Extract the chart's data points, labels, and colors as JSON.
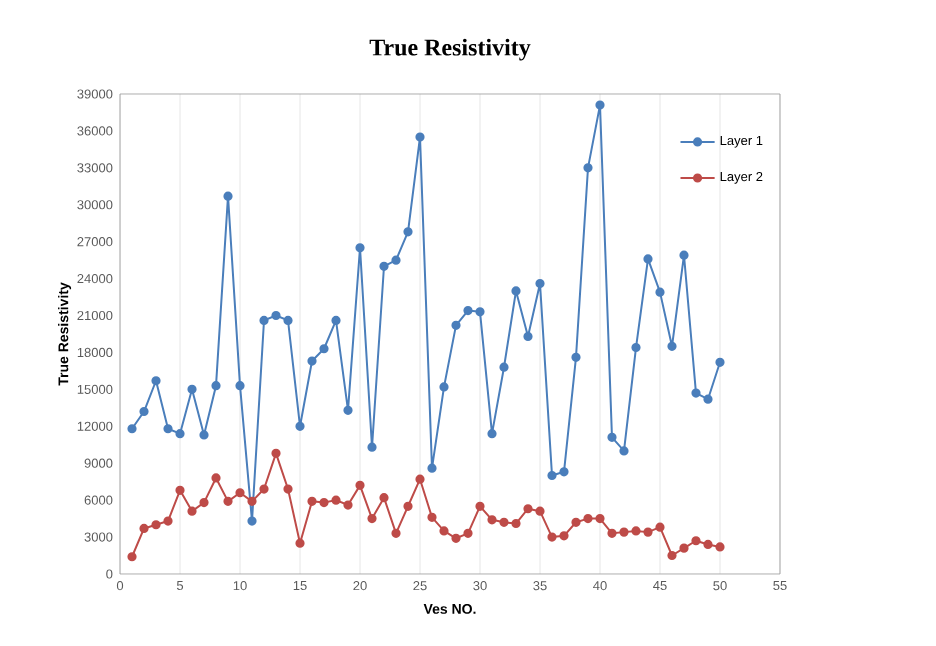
{
  "chart_data": {
    "type": "line",
    "title": "True Resistivity",
    "xlabel": "Ves NO.",
    "ylabel": "True Resistivity",
    "x": [
      1,
      2,
      3,
      4,
      5,
      6,
      7,
      8,
      9,
      10,
      11,
      12,
      13,
      14,
      15,
      16,
      17,
      18,
      19,
      20,
      21,
      22,
      23,
      24,
      25,
      26,
      27,
      28,
      29,
      30,
      31,
      32,
      33,
      34,
      35,
      36,
      37,
      38,
      39,
      40,
      41,
      42,
      43,
      44,
      45,
      46,
      47,
      48,
      49,
      50
    ],
    "series": [
      {
        "name": "Layer 1",
        "color": "#4a7ebb",
        "values": [
          11800,
          13200,
          15700,
          11800,
          11400,
          15000,
          11300,
          15300,
          30700,
          15300,
          4300,
          20600,
          21000,
          20600,
          12000,
          17300,
          18300,
          20600,
          13300,
          26500,
          10300,
          25000,
          25500,
          27800,
          35500,
          8600,
          15200,
          20200,
          21400,
          21300,
          11400,
          16800,
          23000,
          19300,
          23600,
          8000,
          8300,
          17600,
          33000,
          38100,
          11100,
          10000,
          18400,
          25600,
          22900,
          18500,
          25900,
          14700,
          14200,
          17200
        ]
      },
      {
        "name": "Layer 2",
        "color": "#be4b48",
        "values": [
          1400,
          3700,
          4000,
          4300,
          6800,
          5100,
          5800,
          7800,
          5900,
          6600,
          5900,
          6900,
          9800,
          6900,
          2500,
          5900,
          5800,
          6000,
          5600,
          7200,
          4500,
          6200,
          3300,
          5500,
          7700,
          4600,
          3500,
          2900,
          3300,
          5500,
          4400,
          4200,
          4100,
          5300,
          5100,
          3000,
          3100,
          4200,
          4500,
          4500,
          3300,
          3400,
          3500,
          3400,
          3800,
          1500,
          2100,
          2700,
          2400,
          2200
        ]
      }
    ],
    "xlim": [
      0,
      55
    ],
    "xticks": [
      0,
      5,
      10,
      15,
      20,
      25,
      30,
      35,
      40,
      45,
      50,
      55
    ],
    "ylim": [
      0,
      39000
    ],
    "yticks": [
      0,
      3000,
      6000,
      9000,
      12000,
      15000,
      18000,
      21000,
      24000,
      27000,
      30000,
      33000,
      36000,
      39000
    ],
    "grid": "x",
    "legend": "top right",
    "marker": "circle",
    "line_style": "solid"
  }
}
